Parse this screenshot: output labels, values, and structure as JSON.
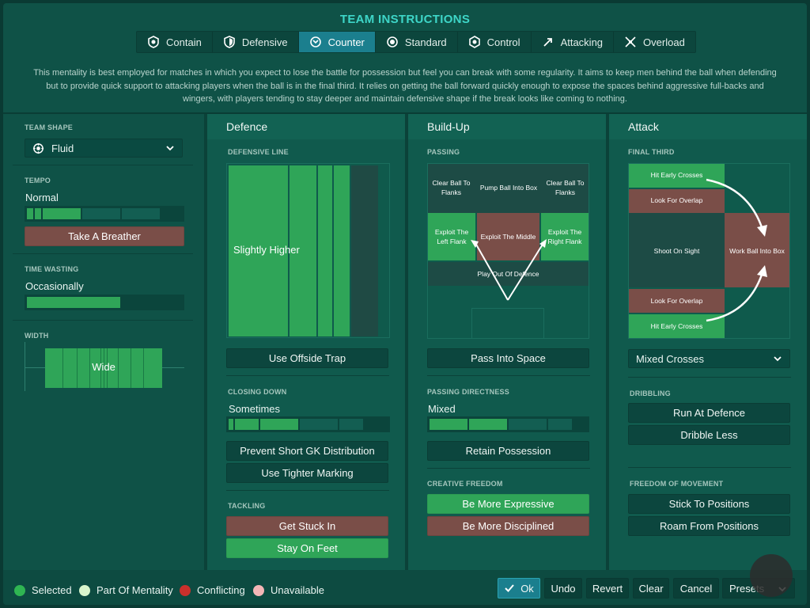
{
  "title": "TEAM INSTRUCTIONS",
  "mentality_tabs": [
    {
      "label": "Contain",
      "icon": "contain-icon",
      "active": false
    },
    {
      "label": "Defensive",
      "icon": "shield-icon",
      "active": false
    },
    {
      "label": "Counter",
      "icon": "counter-icon",
      "active": true
    },
    {
      "label": "Standard",
      "icon": "standard-icon",
      "active": false
    },
    {
      "label": "Control",
      "icon": "control-icon",
      "active": false
    },
    {
      "label": "Attacking",
      "icon": "attacking-icon",
      "active": false
    },
    {
      "label": "Overload",
      "icon": "overload-icon",
      "active": false
    }
  ],
  "description": "This mentality is best employed for matches in which you expect to lose the battle for possession but feel you can break with some regularity.  It aims to keep men behind the ball when defending but to provide quick support to attacking players when the ball is in the final third. It relies on getting the ball forward quickly enough to expose the spaces behind aggressive full-backs and wingers, with players tending to stay deeper and maintain defensive shape if the break looks like coming to nothing.",
  "left": {
    "team_shape_label": "TEAM SHAPE",
    "team_shape_value": "Fluid",
    "tempo_label": "TEMPO",
    "tempo_value": "Normal",
    "tempo_level": 0.4,
    "tempo_button": "Take A Breather",
    "time_wasting_label": "TIME WASTING",
    "time_wasting_value": "Occasionally",
    "time_wasting_level": 0.6,
    "width_label": "WIDTH",
    "width_value": "Wide"
  },
  "defence": {
    "header": "Defence",
    "defensive_line_label": "DEFENSIVE LINE",
    "defensive_line_value": "Slightly Higher",
    "offside_button": "Use Offside Trap",
    "closing_down_label": "CLOSING DOWN",
    "closing_down_value": "Sometimes",
    "closing_down_level": 0.45,
    "prevent_gk_button": "Prevent Short GK Distribution",
    "tighter_marking_button": "Use Tighter Marking",
    "tackling_label": "TACKLING",
    "get_stuck_in_button": "Get Stuck In",
    "stay_on_feet_button": "Stay On Feet"
  },
  "buildup": {
    "header": "Build-Up",
    "passing_label": "PASSING",
    "zones": {
      "clear_left": "Clear Ball To Flanks",
      "pump": "Pump Ball Into Box",
      "clear_right": "Clear Ball To Flanks",
      "exploit_left": "Exploit The Left Flank",
      "exploit_middle": "Exploit The Middle",
      "exploit_right": "Exploit The Right Flank",
      "play_out": "Play Out Of Defence"
    },
    "pass_space_button": "Pass Into Space",
    "passing_directness_label": "PASSING DIRECTNESS",
    "passing_directness_value": "Mixed",
    "passing_directness_level": 0.5,
    "retain_button": "Retain Possession",
    "creative_freedom_label": "CREATIVE FREEDOM",
    "expressive_button": "Be More Expressive",
    "disciplined_button": "Be More Disciplined"
  },
  "attack": {
    "header": "Attack",
    "final_third_label": "FINAL THIRD",
    "zones": {
      "hit_early_top": "Hit Early Crosses",
      "overlap_top": "Look For Overlap",
      "shoot_on_sight": "Shoot On Sight",
      "work_ball": "Work Ball Into Box",
      "overlap_bottom": "Look For Overlap",
      "hit_early_bottom": "Hit Early Crosses"
    },
    "crossing_value": "Mixed Crosses",
    "dribbling_label": "DRIBBLING",
    "run_at_defence_button": "Run At Defence",
    "dribble_less_button": "Dribble Less",
    "freedom_label": "FREEDOM OF MOVEMENT",
    "stick_button": "Stick To Positions",
    "roam_button": "Roam From Positions"
  },
  "legend": [
    {
      "label": "Selected",
      "color": "#2fb552"
    },
    {
      "label": "Part Of Mentality",
      "color": "#d8f5cc"
    },
    {
      "label": "Conflicting",
      "color": "#c9302c"
    },
    {
      "label": "Unavailable",
      "color": "#f4b6b6"
    }
  ],
  "footer": {
    "ok": "Ok",
    "undo": "Undo",
    "revert": "Revert",
    "clear": "Clear",
    "cancel": "Cancel",
    "presets": "Presets"
  },
  "colors": {
    "accent": "#3ed6c8",
    "selected_green": "#2fa558",
    "conflict_brown": "#7a4e48"
  }
}
